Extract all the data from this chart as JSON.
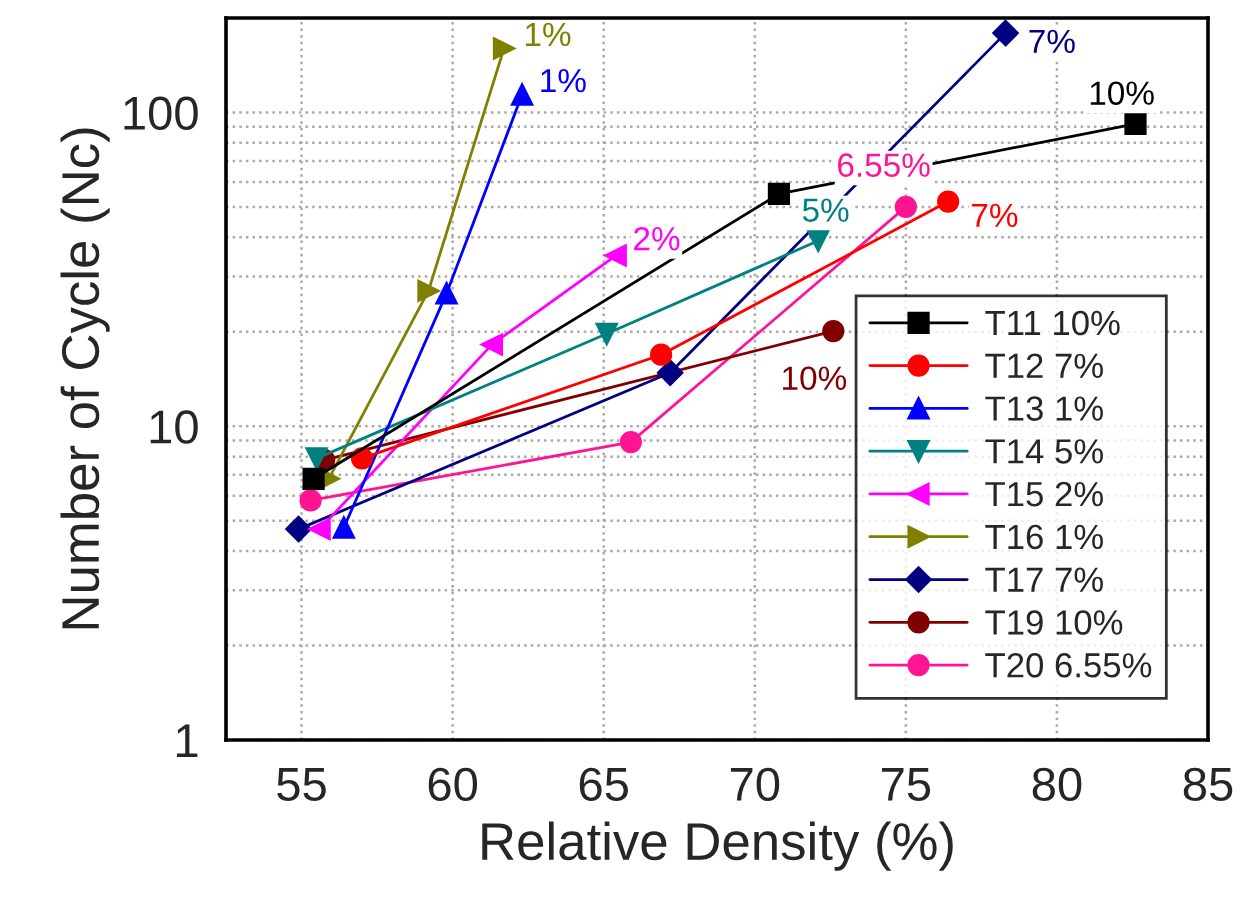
{
  "chart_data": {
    "type": "line",
    "xlabel": "Relative Density (%)",
    "ylabel": "Number of Cycle (Nc)",
    "log": "y",
    "xlim": [
      52.5,
      85
    ],
    "xticks": [
      55,
      60,
      65,
      70,
      75,
      80,
      85
    ],
    "ylim": [
      1,
      200
    ],
    "yticks": [
      1,
      10,
      100
    ],
    "grid": true,
    "legend": "bottom right",
    "series": [
      {
        "name": "T11 10%",
        "color": "#000000",
        "marker": "square",
        "x": [
          55.4,
          70.8,
          82.6
        ],
        "values": [
          6.8,
          55,
          92
        ]
      },
      {
        "name": "T12 7%",
        "color": "#ff0000",
        "marker": "circle",
        "x": [
          57.0,
          66.9,
          76.4
        ],
        "values": [
          7.9,
          16.9,
          52
        ]
      },
      {
        "name": "T13 1%",
        "color": "#0000ff",
        "marker": "triangle",
        "x": [
          56.4,
          59.8,
          62.3
        ],
        "values": [
          4.75,
          26.5,
          114
        ]
      },
      {
        "name": "T14 5%",
        "color": "#008080",
        "marker": "triangle_down",
        "x": [
          55.5,
          65.1,
          72.1
        ],
        "values": [
          7.9,
          19.7,
          39
        ]
      },
      {
        "name": "T15 2%",
        "color": "#ff00ff",
        "marker": "triangle_left",
        "x": [
          55.6,
          61.3,
          65.4
        ],
        "values": [
          4.7,
          18.2,
          35
        ]
      },
      {
        "name": "T16 1%",
        "color": "#808000",
        "marker": "triangle_right",
        "x": [
          55.9,
          59.2,
          61.7
        ],
        "values": [
          6.8,
          27,
          160
        ]
      },
      {
        "name": "T17 7%",
        "color": "#000080",
        "marker": "diamond",
        "x": [
          54.9,
          67.2,
          78.3
        ],
        "values": [
          4.7,
          14.8,
          179
        ]
      },
      {
        "name": "T19 10%",
        "color": "#800000",
        "marker": "circle",
        "x": [
          55.75,
          72.6
        ],
        "values": [
          7.8,
          20.1
        ]
      },
      {
        "name": "T20 6.55%",
        "color": "#ff1493",
        "marker": "circle",
        "x": [
          55.3,
          65.9,
          75.0
        ],
        "values": [
          5.8,
          8.9,
          50
        ]
      }
    ],
    "annotations": [
      {
        "text": "10%",
        "x": 82.6,
        "y": 92
      },
      {
        "text": "7%",
        "x": 76.4,
        "y": 52
      },
      {
        "text": "1%",
        "x": 62.3,
        "y": 114
      },
      {
        "text": "5%",
        "x": 72.1,
        "y": 39
      },
      {
        "text": "2%",
        "x": 65.4,
        "y": 35
      },
      {
        "text": "1%",
        "x": 61.7,
        "y": 160
      },
      {
        "text": "7%",
        "x": 78.3,
        "y": 179
      },
      {
        "text": "10%",
        "x": 72.6,
        "y": 20.1
      },
      {
        "text": "6.55%",
        "x": 75.0,
        "y": 50
      }
    ]
  }
}
